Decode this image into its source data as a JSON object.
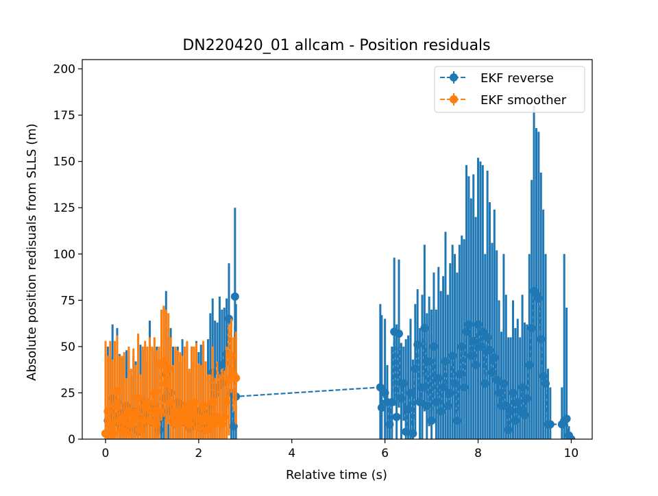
{
  "chart_data": {
    "type": "scatter",
    "title": "DN220420_01 allcam - Position residuals",
    "xlabel": "Relative time (s)",
    "ylabel": "Absolute position redisuals from SLLS (m)",
    "xlim": [
      -0.5,
      10.45
    ],
    "ylim": [
      0,
      205
    ],
    "xticks": [
      0,
      2,
      4,
      6,
      8,
      10
    ],
    "yticks": [
      0,
      25,
      50,
      75,
      100,
      125,
      150,
      175,
      200
    ],
    "legend": {
      "placement": "top-right"
    },
    "series": [
      {
        "name": "EKF reverse",
        "color": "#1f77b4",
        "style": "dashed line with circle markers and vertical error bars",
        "points": [
          [
            0.0,
            3,
            3
          ],
          [
            0.05,
            10,
            40
          ],
          [
            0.1,
            15,
            30
          ],
          [
            0.15,
            22,
            40
          ],
          [
            0.2,
            12,
            30
          ],
          [
            0.25,
            20,
            40
          ],
          [
            0.3,
            8,
            38
          ],
          [
            0.35,
            14,
            30
          ],
          [
            0.4,
            5,
            40
          ],
          [
            0.45,
            18,
            30
          ],
          [
            0.5,
            10,
            35
          ],
          [
            0.55,
            6,
            28
          ],
          [
            0.6,
            15,
            30
          ],
          [
            0.65,
            12,
            30
          ],
          [
            0.7,
            4,
            30
          ],
          [
            0.75,
            16,
            35
          ],
          [
            0.8,
            8,
            40
          ],
          [
            0.85,
            20,
            30
          ],
          [
            0.9,
            12,
            30
          ],
          [
            0.95,
            14,
            50
          ],
          [
            1.0,
            9,
            40
          ],
          [
            1.05,
            18,
            30
          ],
          [
            1.1,
            15,
            35
          ],
          [
            1.15,
            5,
            38
          ],
          [
            1.2,
            12,
            45
          ],
          [
            1.25,
            22,
            50
          ],
          [
            1.3,
            35,
            45
          ],
          [
            1.35,
            15,
            40
          ],
          [
            1.4,
            25,
            35
          ],
          [
            1.45,
            10,
            40
          ],
          [
            1.5,
            8,
            40
          ],
          [
            1.55,
            20,
            30
          ],
          [
            1.6,
            12,
            30
          ],
          [
            1.65,
            9,
            45
          ],
          [
            1.7,
            18,
            30
          ],
          [
            1.75,
            12,
            40
          ],
          [
            1.8,
            6,
            30
          ],
          [
            1.85,
            15,
            35
          ],
          [
            1.9,
            10,
            30
          ],
          [
            1.95,
            13,
            40
          ],
          [
            2.0,
            7,
            40
          ],
          [
            2.05,
            16,
            35
          ],
          [
            2.1,
            11,
            40
          ],
          [
            2.15,
            5,
            30
          ],
          [
            2.2,
            14,
            40
          ],
          [
            2.25,
            18,
            50
          ],
          [
            2.3,
            36,
            40
          ],
          [
            2.35,
            24,
            40
          ],
          [
            2.4,
            28,
            35
          ],
          [
            2.45,
            40,
            37
          ],
          [
            2.5,
            30,
            40
          ],
          [
            2.55,
            41,
            30
          ],
          [
            2.6,
            46,
            30
          ],
          [
            2.65,
            65,
            30
          ],
          [
            2.7,
            25,
            30
          ],
          [
            2.75,
            7,
            8
          ],
          [
            2.78,
            77,
            48
          ],
          [
            2.8,
            23,
            50
          ],
          [
            5.9,
            28,
            45
          ],
          [
            5.93,
            17,
            50
          ],
          [
            6.0,
            25,
            40
          ],
          [
            6.05,
            20,
            20
          ],
          [
            6.1,
            8,
            10
          ],
          [
            6.15,
            20,
            30
          ],
          [
            6.2,
            58,
            40
          ],
          [
            6.25,
            12,
            50
          ],
          [
            6.3,
            57,
            40
          ],
          [
            6.35,
            22,
            30
          ],
          [
            6.4,
            30,
            20
          ],
          [
            6.45,
            4,
            50
          ],
          [
            6.5,
            16,
            40
          ],
          [
            6.55,
            25,
            40
          ],
          [
            6.6,
            3,
            40
          ],
          [
            6.65,
            38,
            35
          ],
          [
            6.7,
            51,
            30
          ],
          [
            6.75,
            20,
            40
          ],
          [
            6.8,
            28,
            50
          ],
          [
            6.85,
            60,
            45
          ],
          [
            6.9,
            18,
            50
          ],
          [
            6.95,
            42,
            35
          ],
          [
            7.0,
            10,
            60
          ],
          [
            7.05,
            50,
            40
          ],
          [
            7.1,
            20,
            50
          ],
          [
            7.15,
            33,
            60
          ],
          [
            7.2,
            15,
            65
          ],
          [
            7.25,
            28,
            60
          ],
          [
            7.3,
            42,
            70
          ],
          [
            7.35,
            18,
            60
          ],
          [
            7.4,
            25,
            70
          ],
          [
            7.45,
            45,
            60
          ],
          [
            7.5,
            30,
            70
          ],
          [
            7.55,
            10,
            80
          ],
          [
            7.6,
            35,
            70
          ],
          [
            7.65,
            50,
            60
          ],
          [
            7.7,
            28,
            80
          ],
          [
            7.75,
            58,
            90
          ],
          [
            7.8,
            62,
            80
          ],
          [
            7.85,
            45,
            85
          ],
          [
            7.9,
            53,
            90
          ],
          [
            7.95,
            40,
            80
          ],
          [
            8.0,
            62,
            90
          ],
          [
            8.05,
            50,
            100
          ],
          [
            8.1,
            58,
            90
          ],
          [
            8.15,
            30,
            70
          ],
          [
            8.2,
            55,
            90
          ],
          [
            8.25,
            48,
            80
          ],
          [
            8.3,
            36,
            70
          ],
          [
            8.35,
            44,
            80
          ],
          [
            8.4,
            32,
            70
          ],
          [
            8.45,
            25,
            50
          ],
          [
            8.5,
            18,
            40
          ],
          [
            8.55,
            30,
            70
          ],
          [
            8.6,
            18,
            60
          ],
          [
            8.65,
            5,
            50
          ],
          [
            8.7,
            15,
            40
          ],
          [
            8.75,
            25,
            50
          ],
          [
            8.8,
            10,
            50
          ],
          [
            8.85,
            20,
            45
          ],
          [
            8.9,
            15,
            40
          ],
          [
            8.95,
            28,
            50
          ],
          [
            9.0,
            13,
            50
          ],
          [
            9.05,
            22,
            40
          ],
          [
            9.1,
            40,
            60
          ],
          [
            9.15,
            60,
            80
          ],
          [
            9.2,
            80,
            100
          ],
          [
            9.25,
            78,
            90
          ],
          [
            9.3,
            76,
            90
          ],
          [
            9.35,
            54,
            90
          ],
          [
            9.4,
            34,
            90
          ],
          [
            9.45,
            30,
            70
          ],
          [
            9.5,
            8,
            30
          ],
          [
            9.55,
            8,
            20
          ],
          [
            9.8,
            8,
            20
          ],
          [
            9.85,
            10,
            90
          ],
          [
            9.9,
            11,
            60
          ],
          [
            9.95,
            2,
            5
          ],
          [
            10.0,
            0,
            3
          ]
        ]
      },
      {
        "name": "EKF smoother",
        "color": "#ff7f0e",
        "style": "dashed line with circle markers and vertical error bars",
        "points": [
          [
            0.0,
            3,
            50
          ],
          [
            0.05,
            15,
            30
          ],
          [
            0.1,
            8,
            45
          ],
          [
            0.15,
            3,
            40
          ],
          [
            0.2,
            18,
            35
          ],
          [
            0.25,
            26,
            30
          ],
          [
            0.3,
            10,
            35
          ],
          [
            0.35,
            5,
            40
          ],
          [
            0.4,
            12,
            35
          ],
          [
            0.45,
            3,
            30
          ],
          [
            0.5,
            15,
            35
          ],
          [
            0.55,
            8,
            30
          ],
          [
            0.6,
            14,
            35
          ],
          [
            0.65,
            10,
            30
          ],
          [
            0.7,
            22,
            35
          ],
          [
            0.75,
            5,
            30
          ],
          [
            0.8,
            10,
            40
          ],
          [
            0.85,
            18,
            35
          ],
          [
            0.9,
            20,
            30
          ],
          [
            0.95,
            10,
            45
          ],
          [
            1.0,
            15,
            35
          ],
          [
            1.05,
            25,
            30
          ],
          [
            1.1,
            8,
            40
          ],
          [
            1.15,
            15,
            35
          ],
          [
            1.2,
            40,
            30
          ],
          [
            1.25,
            42,
            30
          ],
          [
            1.3,
            30,
            40
          ],
          [
            1.35,
            38,
            30
          ],
          [
            1.4,
            20,
            35
          ],
          [
            1.45,
            10,
            30
          ],
          [
            1.5,
            15,
            35
          ],
          [
            1.55,
            8,
            40
          ],
          [
            1.6,
            12,
            35
          ],
          [
            1.65,
            15,
            30
          ],
          [
            1.7,
            10,
            40
          ],
          [
            1.75,
            18,
            35
          ],
          [
            1.8,
            8,
            30
          ],
          [
            1.85,
            15,
            35
          ],
          [
            1.9,
            20,
            30
          ],
          [
            1.95,
            12,
            40
          ],
          [
            2.0,
            6,
            35
          ],
          [
            2.05,
            10,
            30
          ],
          [
            2.1,
            18,
            35
          ],
          [
            2.15,
            12,
            30
          ],
          [
            2.2,
            5,
            30
          ],
          [
            2.25,
            10,
            25
          ],
          [
            2.3,
            20,
            30
          ],
          [
            2.35,
            8,
            25
          ],
          [
            2.4,
            12,
            30
          ],
          [
            2.45,
            10,
            25
          ],
          [
            2.5,
            8,
            30
          ],
          [
            2.55,
            12,
            25
          ],
          [
            2.6,
            20,
            30
          ],
          [
            2.65,
            32,
            30
          ],
          [
            2.7,
            45,
            20
          ],
          [
            2.75,
            35,
            20
          ],
          [
            2.8,
            33,
            25
          ]
        ]
      }
    ]
  }
}
